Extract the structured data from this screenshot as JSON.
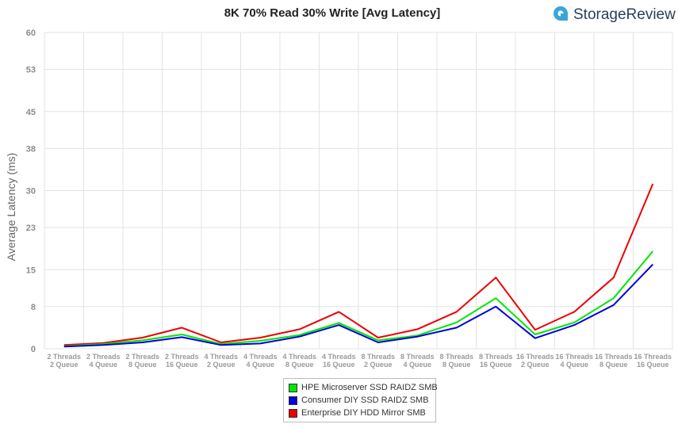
{
  "brand": {
    "name": "StorageReview"
  },
  "chart_data": {
    "type": "line",
    "title": "8K 70% Read 30% Write [Avg Latency]",
    "ylabel": "Average Latency (ms)",
    "xlabel": "",
    "ylim": [
      0,
      60
    ],
    "yticks": [
      "0",
      "8",
      "15",
      "23",
      "30",
      "38",
      "45",
      "53",
      "60"
    ],
    "grid": true,
    "legend_position": "bottom-center",
    "categories": [
      [
        "2 Threads",
        "2 Queue"
      ],
      [
        "2 Threads",
        "4 Queue"
      ],
      [
        "2 Threads",
        "8 Queue"
      ],
      [
        "2 Threads",
        "16 Queue"
      ],
      [
        "4 Threads",
        "2 Queue"
      ],
      [
        "4 Threads",
        "4 Queue"
      ],
      [
        "4 Threads",
        "8 Queue"
      ],
      [
        "4 Threads",
        "16 Queue"
      ],
      [
        "8 Threads",
        "2 Queue"
      ],
      [
        "8 Threads",
        "4 Queue"
      ],
      [
        "8 Threads",
        "8 Queue"
      ],
      [
        "8 Threads",
        "16 Queue"
      ],
      [
        "16 Threads",
        "2 Queue"
      ],
      [
        "16 Threads",
        "4 Queue"
      ],
      [
        "16 Threads",
        "8 Queue"
      ],
      [
        "16 Threads",
        "16 Queue"
      ]
    ],
    "series": [
      {
        "name": "HPE Microserver SSD RAIDZ SMB",
        "color": "#00e600",
        "values": [
          0.5,
          0.9,
          1.6,
          2.7,
          0.9,
          1.5,
          2.6,
          4.9,
          1.6,
          2.5,
          5.0,
          9.6,
          2.7,
          5.0,
          9.6,
          18.5
        ]
      },
      {
        "name": "Consumer DIY SSD RAIDZ SMB",
        "color": "#0000dd",
        "values": [
          0.4,
          0.7,
          1.2,
          2.2,
          0.7,
          1.0,
          2.3,
          4.5,
          1.2,
          2.3,
          4.0,
          8.0,
          2.0,
          4.5,
          8.3,
          16.0
        ]
      },
      {
        "name": "Enterprise DIY HDD Mirror SMB",
        "color": "#ee0000",
        "values": [
          0.7,
          1.1,
          2.1,
          4.0,
          1.2,
          2.1,
          3.7,
          7.0,
          2.1,
          3.7,
          7.0,
          13.5,
          3.6,
          7.0,
          13.5,
          31.3
        ]
      }
    ]
  }
}
